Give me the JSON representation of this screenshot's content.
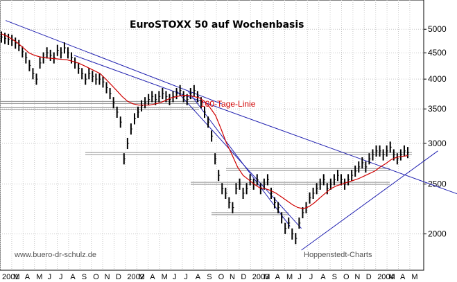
{
  "chart_data": {
    "type": "line",
    "title": "EuroSTOXX 50 auf Wochenbasis",
    "source_left": "www.buero-dr-schulz.de",
    "source_right": "Hoppenstedt-Charts",
    "y_scale": "log",
    "ylim": [
      1700,
      5700
    ],
    "y_ticks": [
      2000,
      2500,
      3000,
      3500,
      4000,
      4500,
      5000
    ],
    "x_ticks": [
      "2001",
      "M",
      "A",
      "M",
      "J",
      "J",
      "A",
      "S",
      "O",
      "N",
      "D",
      "2002",
      "M",
      "A",
      "M",
      "J",
      "J",
      "A",
      "S",
      "O",
      "N",
      "D",
      "2003",
      "M",
      "A",
      "M",
      "J",
      "J",
      "A",
      "S",
      "O",
      "N",
      "D",
      "2004",
      "M",
      "A",
      "M"
    ],
    "grid": true,
    "colors": {
      "price": "#000000",
      "moving_average": "#d00000",
      "trendline": "#2020b0",
      "level": "#909090",
      "grid": "#c8c8c8"
    },
    "moving_average_label": "100-Tage-Linie",
    "price_weekly": [
      4830,
      4800,
      4780,
      4760,
      4700,
      4650,
      4520,
      4400,
      4250,
      4100,
      4000,
      4300,
      4400,
      4500,
      4450,
      4400,
      4550,
      4500,
      4600,
      4500,
      4400,
      4300,
      4200,
      4100,
      4000,
      4100,
      4050,
      4000,
      4000,
      3950,
      3850,
      3750,
      3600,
      3450,
      3300,
      2800,
      3000,
      3200,
      3350,
      3450,
      3550,
      3600,
      3650,
      3700,
      3650,
      3700,
      3750,
      3700,
      3650,
      3700,
      3750,
      3800,
      3700,
      3650,
      3750,
      3800,
      3700,
      3600,
      3450,
      3300,
      3100,
      2800,
      2600,
      2450,
      2400,
      2300,
      2250,
      2450,
      2500,
      2400,
      2450,
      2550,
      2500,
      2550,
      2450,
      2500,
      2550,
      2400,
      2300,
      2250,
      2150,
      2050,
      2100,
      2000,
      1960,
      2100,
      2200,
      2250,
      2350,
      2400,
      2450,
      2500,
      2550,
      2450,
      2500,
      2550,
      2600,
      2550,
      2500,
      2550,
      2600,
      2650,
      2700,
      2750,
      2700,
      2800,
      2850,
      2900,
      2900,
      2850,
      2900,
      2950,
      2850,
      2800,
      2850,
      2900,
      2880
    ],
    "moving_average": [
      4900,
      4850,
      4780,
      4700,
      4600,
      4500,
      4450,
      4420,
      4400,
      4390,
      4380,
      4370,
      4360,
      4330,
      4300,
      4250,
      4200,
      4150,
      4100,
      4000,
      3900,
      3800,
      3700,
      3620,
      3580,
      3560,
      3560,
      3560,
      3580,
      3600,
      3640,
      3680,
      3700,
      3720,
      3720,
      3700,
      3680,
      3620,
      3520,
      3400,
      3200,
      3000,
      2850,
      2700,
      2600,
      2550,
      2500,
      2460,
      2450,
      2430,
      2400,
      2360,
      2320,
      2280,
      2250,
      2240,
      2260,
      2300,
      2350,
      2400,
      2450,
      2480,
      2500,
      2520,
      2540,
      2560,
      2590,
      2620,
      2650,
      2700,
      2740,
      2790,
      2820,
      2830,
      2840
    ],
    "trendlines": [
      {
        "from": [
          "2001-01",
          5200
        ],
        "to": [
          "2002-08",
          3580
        ]
      },
      {
        "from": [
          "2001-07",
          4450
        ],
        "to": [
          "2004-05",
          2380
        ]
      },
      {
        "from": [
          "2002-05",
          3800
        ],
        "to": [
          "2003-02",
          2070
        ]
      },
      {
        "from": [
          "2002-04",
          3800
        ],
        "to": [
          "2003-03",
          2050
        ]
      },
      {
        "from": [
          "2003-03",
          1860
        ],
        "to": [
          "2004-03",
          2900
        ]
      }
    ],
    "horizontal_levels": [
      3620,
      3520,
      2880,
      2680,
      2520,
      2200
    ]
  }
}
